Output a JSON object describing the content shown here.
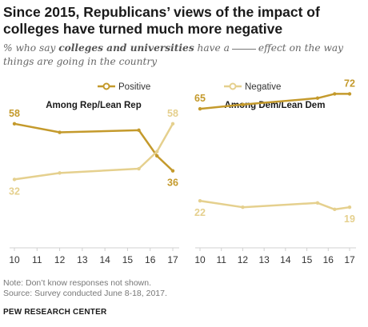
{
  "title": "Since 2015, Republicans’ views of the impact of colleges have turned much more negative",
  "subtitle": {
    "pre": "% who say ",
    "bold": "colleges and universities",
    "mid": " have a",
    "post": "effect on the way things are going in the country"
  },
  "note": "Note: Don’t know responses not shown.",
  "source_line": "Source: Survey conducted June 8-18, 2017.",
  "org": "PEW RESEARCH CENTER",
  "colors": {
    "positive": "#c49a2c",
    "negative": "#e5d08e",
    "axis": "#d0d0d0"
  },
  "chart_data": [
    {
      "type": "line",
      "title": "Among Rep/Lean Rep",
      "x": [
        2010,
        2012,
        2015.5,
        2016.3,
        2017
      ],
      "xticks": [
        "10",
        "11",
        "12",
        "13",
        "14",
        "15",
        "16",
        "17"
      ],
      "series": [
        {
          "name": "Positive",
          "values": [
            58,
            54,
            55,
            43,
            36
          ],
          "labels": {
            "0": "58",
            "4": "36"
          }
        },
        {
          "name": "Negative",
          "values": [
            32,
            35,
            37,
            45,
            58
          ],
          "labels": {
            "0": "32",
            "4": "58"
          }
        }
      ],
      "ylim": [
        0,
        80
      ],
      "grid": false,
      "legend": "top"
    },
    {
      "type": "line",
      "title": "Among Dem/Lean Dem",
      "x": [
        2010,
        2012,
        2015.5,
        2016.3,
        2017
      ],
      "xticks": [
        "10",
        "11",
        "12",
        "13",
        "14",
        "15",
        "16",
        "17"
      ],
      "series": [
        {
          "name": "Positive",
          "values": [
            65,
            67,
            70,
            72,
            72
          ],
          "labels": {
            "0": "65",
            "4": "72"
          }
        },
        {
          "name": "Negative",
          "values": [
            22,
            19,
            21,
            18,
            19
          ],
          "labels": {
            "0": "22",
            "4": "19"
          }
        }
      ],
      "ylim": [
        0,
        80
      ],
      "grid": false,
      "legend": "top"
    }
  ]
}
